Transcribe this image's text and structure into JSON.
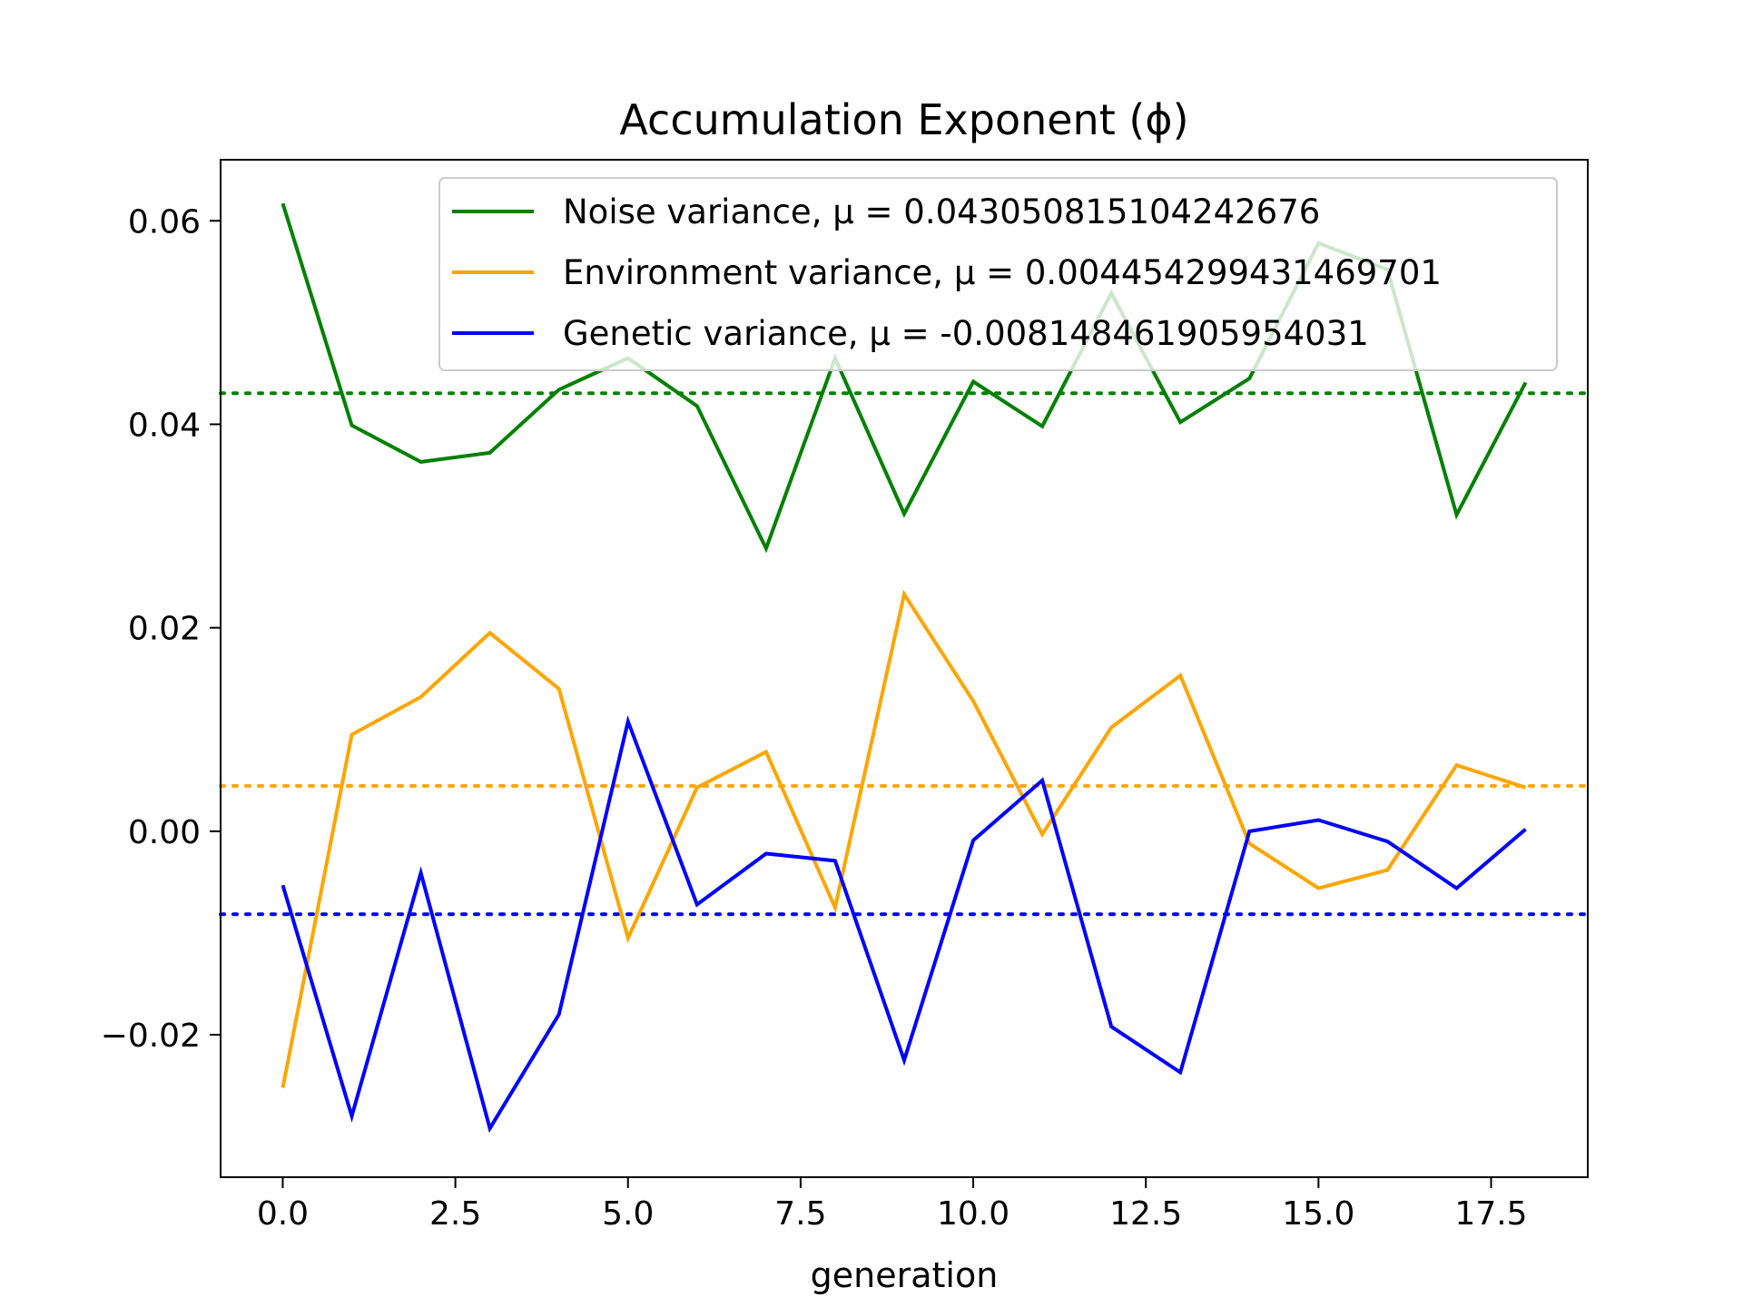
{
  "chart_data": {
    "type": "line",
    "title": "Accumulation Exponent (ϕ)",
    "xlabel": "generation",
    "ylabel": "",
    "xlim": [
      -0.9,
      18.9
    ],
    "ylim": [
      -0.034,
      0.066
    ],
    "x_ticks": [
      0.0,
      2.5,
      5.0,
      7.5,
      10.0,
      12.5,
      15.0,
      17.5
    ],
    "x_tick_labels": [
      "0.0",
      "2.5",
      "5.0",
      "7.5",
      "10.0",
      "12.5",
      "15.0",
      "17.5"
    ],
    "y_ticks": [
      -0.02,
      0.0,
      0.02,
      0.04,
      0.06
    ],
    "y_tick_labels": [
      "−0.02",
      "0.00",
      "0.02",
      "0.04",
      "0.06"
    ],
    "grid": false,
    "legend_position": "top-right",
    "x": [
      0,
      1,
      2,
      3,
      4,
      5,
      6,
      7,
      8,
      9,
      10,
      11,
      12,
      13,
      14,
      15,
      16,
      17,
      18
    ],
    "series": [
      {
        "name": "Noise variance, μ = 0.04305081510424267 6",
        "legend_label": "Noise variance, μ = 0.043050815104242676",
        "color": "#008000",
        "mean": 0.043050815104242676,
        "values": [
          0.0617,
          0.0399,
          0.0363,
          0.0372,
          0.0434,
          0.0465,
          0.0418,
          0.0278,
          0.0465,
          0.0312,
          0.0442,
          0.0398,
          0.0529,
          0.0402,
          0.0445,
          0.0578,
          0.0552,
          0.0311,
          0.0441
        ]
      },
      {
        "name": "Environment variance, μ = 0.004454299431469701",
        "legend_label": "Environment variance, μ = 0.004454299431469701",
        "color": "#FFA500",
        "mean": 0.004454299431469701,
        "values": [
          -0.0252,
          0.0095,
          0.0132,
          0.0195,
          0.014,
          -0.0105,
          0.0043,
          0.0078,
          -0.0075,
          0.0233,
          0.0128,
          -0.0003,
          0.0102,
          0.0153,
          -0.0012,
          -0.0056,
          -0.0038,
          0.0065,
          0.0043
        ]
      },
      {
        "name": "Genetic variance, μ = -0.008148461905954031",
        "legend_label": "Genetic variance, μ = -0.008148461905954031",
        "color": "#0000FF",
        "mean": -0.008148461905954031,
        "values": [
          -0.0053,
          -0.028,
          -0.0041,
          -0.0292,
          -0.018,
          0.0108,
          -0.0072,
          -0.0022,
          -0.0029,
          -0.0225,
          -0.0009,
          0.005,
          -0.0192,
          -0.0237,
          0.0,
          0.0011,
          -0.001,
          -0.0056,
          0.0002
        ]
      }
    ]
  }
}
